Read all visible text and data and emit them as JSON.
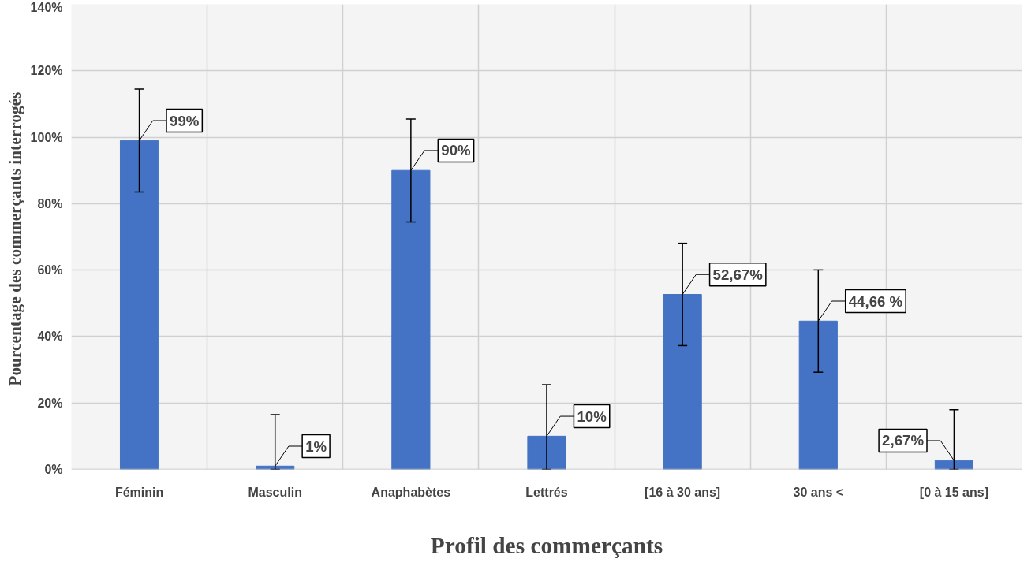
{
  "chart_data": {
    "type": "bar",
    "xlabel": "Profil des commerçants",
    "ylabel": "Pourcentage des commerçants  interrogés",
    "categories": [
      "Féminin",
      "Masculin",
      "Anaphabètes",
      "Lettrés",
      "[16 à 30 ans]",
      "30 ans <",
      "[0 à 15 ans]"
    ],
    "values": [
      99,
      1,
      90,
      10,
      52.67,
      44.66,
      2.67
    ],
    "color": "#4472c4",
    "errors": [
      15.5,
      [
        0,
        16.5
      ],
      15.5,
      [
        0,
        25.5
      ],
      15.4,
      15.4,
      [
        0,
        18
      ]
    ],
    "value_labels": [
      "99%",
      "1%",
      "90%",
      "10%",
      "52,67%",
      "44,66 %",
      "2,67%"
    ],
    "ylim": [
      0,
      140
    ],
    "yticks": [
      {
        "value": 0,
        "label": "0%"
      },
      {
        "value": 20,
        "label": "20%"
      },
      {
        "value": 40,
        "label": "40%"
      },
      {
        "value": 60,
        "label": "60%"
      },
      {
        "value": 80,
        "label": "80%"
      },
      {
        "value": 100,
        "label": "100%"
      },
      {
        "value": 120,
        "label": "120%"
      },
      {
        "value": 140,
        "label": "140%"
      }
    ],
    "grid": true
  }
}
